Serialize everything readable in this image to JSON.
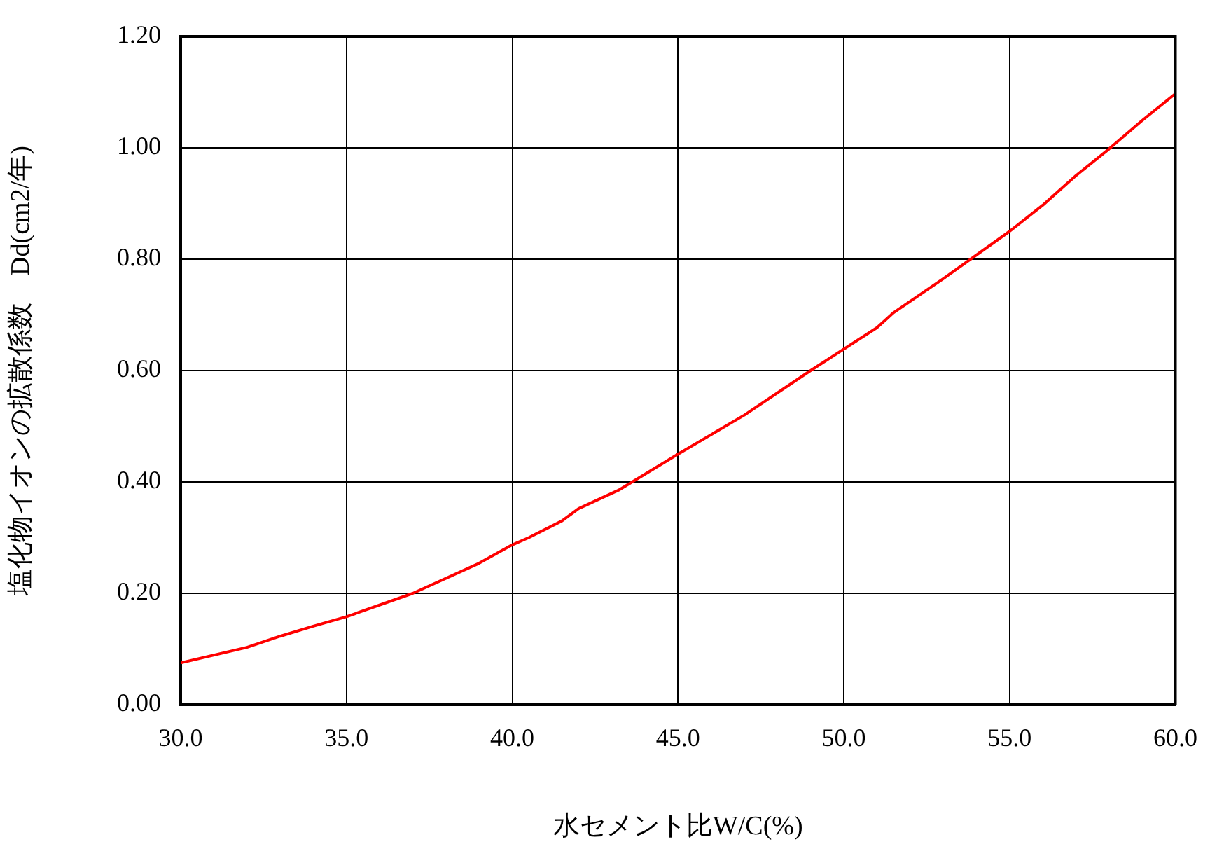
{
  "chart_data": {
    "type": "line",
    "xlabel": "水セメント比W/C(%)",
    "ylabel": "塩化物イオンの拡散係数　Dd(cm2/年)",
    "x": [
      30,
      32,
      33,
      34,
      35,
      37,
      39,
      40,
      40.5,
      41.5,
      42,
      43.2,
      45,
      47,
      49,
      51,
      51.5,
      53,
      55,
      56,
      57,
      58,
      59,
      60
    ],
    "series": [
      {
        "color": "#ff0000",
        "values": [
          0.075,
          0.103,
          0.123,
          0.141,
          0.158,
          0.2,
          0.254,
          0.287,
          0.3,
          0.33,
          0.352,
          0.385,
          0.45,
          0.52,
          0.6,
          0.677,
          0.704,
          0.765,
          0.85,
          0.897,
          0.95,
          0.998,
          1.049,
          1.097
        ]
      }
    ],
    "xlim": [
      30,
      60
    ],
    "ylim": [
      0,
      1.2
    ],
    "xticks": [
      {
        "value": 30,
        "label": "30.0"
      },
      {
        "value": 35,
        "label": "35.0"
      },
      {
        "value": 40,
        "label": "40.0"
      },
      {
        "value": 45,
        "label": "45.0"
      },
      {
        "value": 50,
        "label": "50.0"
      },
      {
        "value": 55,
        "label": "55.0"
      },
      {
        "value": 60,
        "label": "60.0"
      }
    ],
    "yticks": [
      {
        "value": 0,
        "label": "0.00"
      },
      {
        "value": 0.2,
        "label": "0.20"
      },
      {
        "value": 0.4,
        "label": "0.40"
      },
      {
        "value": 0.6,
        "label": "0.60"
      },
      {
        "value": 0.8,
        "label": "0.80"
      },
      {
        "value": 1,
        "label": "1.00"
      },
      {
        "value": 1.2,
        "label": "1.20"
      }
    ],
    "grid": true,
    "legend": false,
    "marker": "none",
    "line_style": "solid"
  }
}
